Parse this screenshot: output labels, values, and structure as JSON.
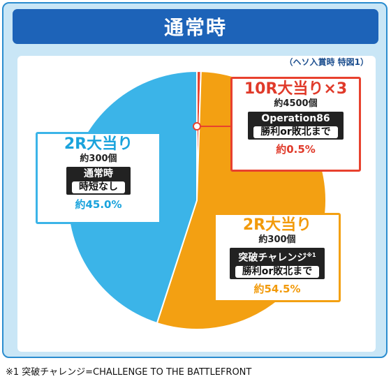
{
  "header": {
    "title": "通常時"
  },
  "note_top": "（ヘソ入賞時 特図1）",
  "chart_data": {
    "type": "pie",
    "title": "通常時",
    "slices": [
      {
        "name": "10R大当り×3",
        "value": 0.5,
        "color": "#e8412e"
      },
      {
        "name": "2R大当り 突破チャレンジ",
        "value": 54.5,
        "color": "#f3a012"
      },
      {
        "name": "2R大当り 通常時",
        "value": 45.0,
        "color": "#3bb4e8"
      }
    ]
  },
  "labels": {
    "blue": {
      "title": "2R大当り",
      "sub": "約300個",
      "line1": "通常時",
      "line2": "時短なし",
      "pct": "約45.0%"
    },
    "red": {
      "title": "10R大当り×3",
      "sub": "約4500個",
      "line1": "Operation86",
      "line2": "勝利or敗北まで",
      "pct": "約0.5%"
    },
    "orange": {
      "title": "2R大当り",
      "sub": "約300個",
      "line1": "突破チャレンジ",
      "line1_sup": "※1",
      "line2": "勝利or敗北まで",
      "pct": "約54.5%"
    }
  },
  "footnote": "※1 突破チャレンジ=CHALLENGE TO THE BATTLEFRONT"
}
